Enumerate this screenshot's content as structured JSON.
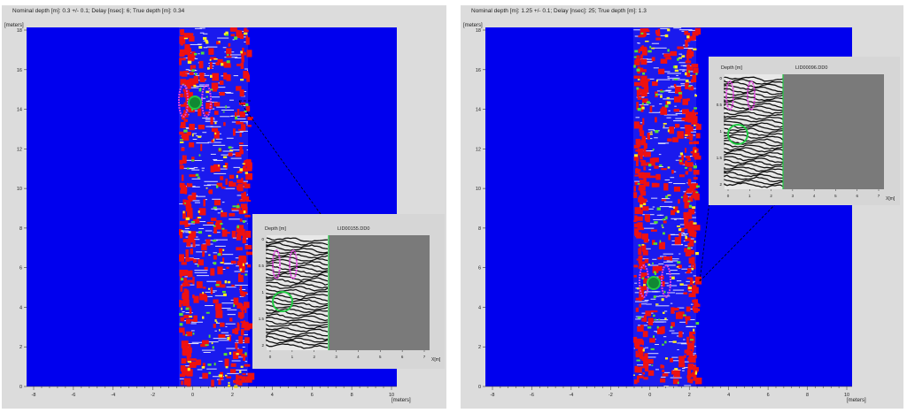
{
  "panels": [
    {
      "header": "Nominal depth [m]: 0.3 +/- 0.1;  Delay [nsec]: 6;  True depth [m]: 0.34",
      "y_unit": "[meters]",
      "x_unit": "[meters]",
      "y_ticks": [
        "18",
        "16",
        "14",
        "12",
        "10",
        "8",
        "6",
        "4",
        "2",
        "0"
      ],
      "x_ticks": [
        "-8",
        "-6",
        "-4",
        "-2",
        "0",
        "2",
        "4",
        "6",
        "8",
        "10"
      ],
      "inset": {
        "y_label": "Depth [m]",
        "file_label": "LID00155.DD0",
        "y_ticks": [
          "0",
          "0.5",
          "1",
          "1.5",
          "2"
        ],
        "x_ticks": [
          "0",
          "1",
          "2",
          "3",
          "4",
          "5",
          "6",
          "7"
        ],
        "x_unit": "X[m]"
      }
    },
    {
      "header": "Nominal depth [m]: 1.25 +/- 0.1;  Delay [nsec]: 25;  True depth [m]: 1.3",
      "y_unit": "[meters]",
      "x_unit": "[meters]",
      "y_ticks": [
        "18",
        "16",
        "14",
        "12",
        "10",
        "8",
        "6",
        "4",
        "2",
        "0"
      ],
      "x_ticks": [
        "-8",
        "-6",
        "-4",
        "-2",
        "0",
        "2",
        "4",
        "6",
        "8",
        "10"
      ],
      "inset": {
        "y_label": "Depth [m]",
        "file_label": "LID00096.DD0",
        "y_ticks": [
          "0",
          "0.5",
          "1",
          "1.5",
          "2"
        ],
        "x_ticks": [
          "0",
          "1",
          "2",
          "3",
          "4",
          "5",
          "6",
          "7"
        ],
        "x_unit": "X[m]"
      }
    }
  ],
  "colors": {
    "background": "#0000ee",
    "survey_stripe": "#ffffff",
    "anomaly_high": "#ee1111",
    "anomaly_mid": "#55dd33",
    "target_magenta": "#dd44dd",
    "target_green": "#22cc44",
    "radargram_gray": "#7a7a7a"
  }
}
